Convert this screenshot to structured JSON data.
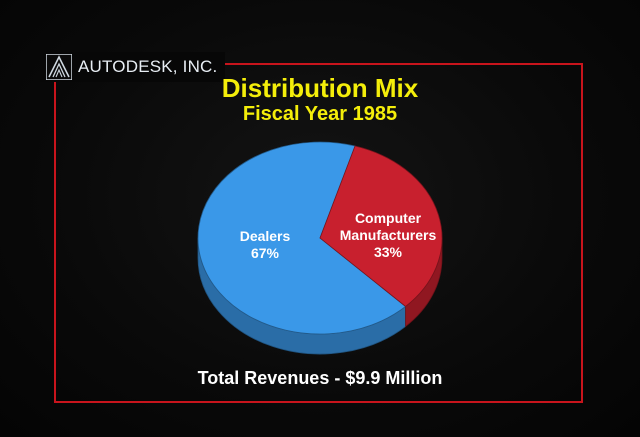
{
  "logo": {
    "text": "AUTODESK, INC.",
    "icon": "autodesk-logo-icon"
  },
  "colors": {
    "title": "#f4ee0a",
    "frame": "#c8141c",
    "dealers": "#3a98e8",
    "manufacturers": "#c8202e",
    "background": "#050505"
  },
  "chart_data": {
    "type": "pie",
    "title": "Distribution Mix",
    "subtitle": "Fiscal Year 1985",
    "slices": [
      {
        "label_lines": [
          "Dealers",
          "67%"
        ],
        "value": 67,
        "color": "#3a98e8"
      },
      {
        "label_lines": [
          "Computer",
          "Manufacturers",
          "33%"
        ],
        "value": 33,
        "color": "#c8202e"
      }
    ],
    "footnote": "Total Revenues - $9.9 Million",
    "style": "3d"
  }
}
